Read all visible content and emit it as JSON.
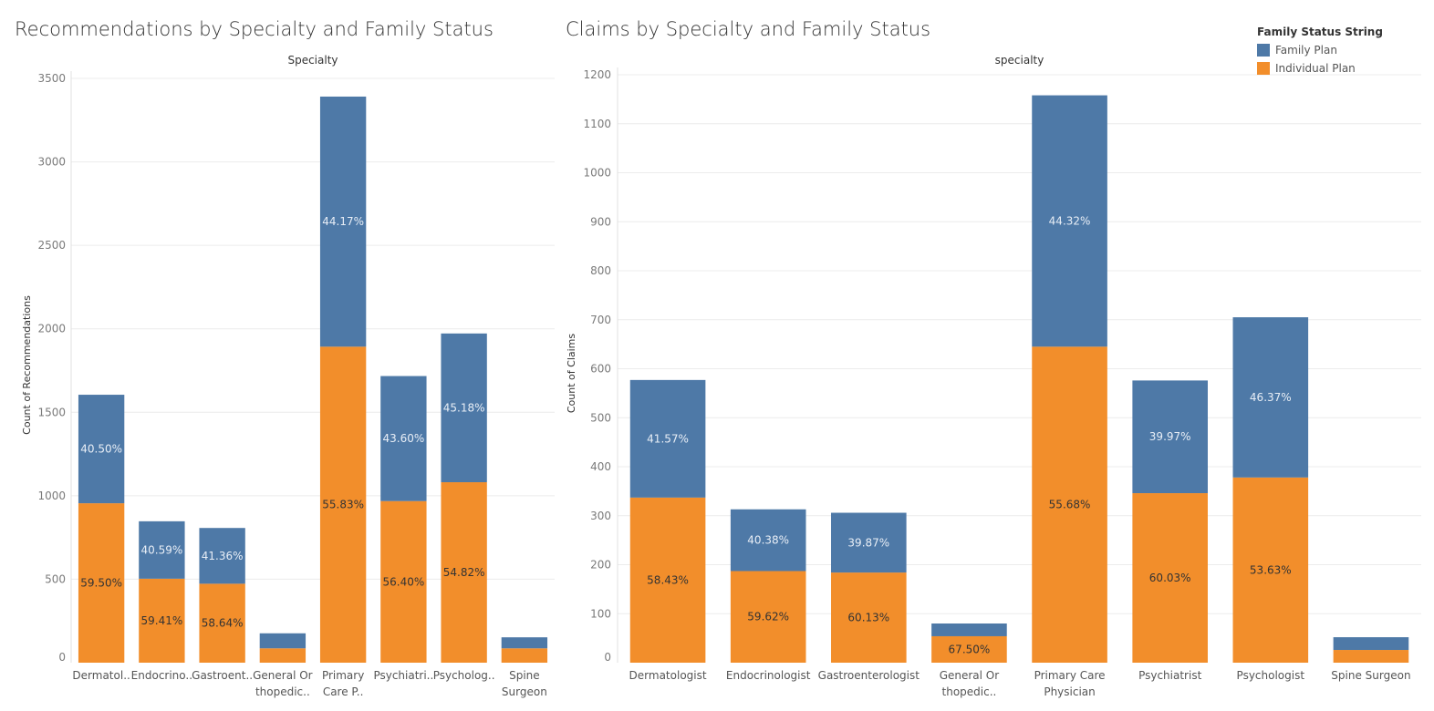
{
  "colors": {
    "family": "#4e79a7",
    "individual": "#f28e2b",
    "grid": "#ececec",
    "axis_text": "#7a7a7a",
    "label_dark": "#333333",
    "label_light": "#e8eef6"
  },
  "legend": {
    "title": "Family Status String",
    "items": [
      {
        "label": "Family Plan",
        "color": "#4e79a7"
      },
      {
        "label": "Individual Plan",
        "color": "#f28e2b"
      }
    ]
  },
  "chart_data": [
    {
      "type": "bar",
      "stacked": true,
      "title": "Recommendations by Specialty and Family Status",
      "column_header": "Specialty",
      "ylabel": "Count of Recommendations",
      "ylim": [
        0,
        3500
      ],
      "yticks": [
        0,
        500,
        1000,
        1500,
        2000,
        2500,
        3000,
        3500
      ],
      "categories": [
        "Dermatol..",
        "Endocrino..",
        "Gastroent..",
        "General Or thopedic..",
        "Primary Care P..",
        "Psychiatri..",
        "Psycholog..",
        "Spine Surgeon"
      ],
      "category_lines": [
        [
          "Dermatol.."
        ],
        [
          "Endocrino.."
        ],
        [
          "Gastroent.."
        ],
        [
          "General Or",
          "thopedic.."
        ],
        [
          "Primary",
          "Care P.."
        ],
        [
          "Psychiatri.."
        ],
        [
          "Psycholog.."
        ],
        [
          "Spine",
          "Surgeon"
        ]
      ],
      "series": [
        {
          "name": "Individual Plan",
          "values": [
            955,
            503,
            473,
            86,
            1893,
            968,
            1081,
            86
          ],
          "labels": [
            "59.50%",
            "59.41%",
            "58.64%",
            "",
            "55.83%",
            "56.40%",
            "54.82%",
            ""
          ]
        },
        {
          "name": "Family Plan",
          "values": [
            650,
            344,
            334,
            90,
            1498,
            749,
            891,
            66
          ],
          "labels": [
            "40.50%",
            "40.59%",
            "41.36%",
            "",
            "44.17%",
            "43.60%",
            "45.18%",
            ""
          ]
        }
      ]
    },
    {
      "type": "bar",
      "stacked": true,
      "title": "Claims by Specialty and Family Status",
      "column_header": "specialty",
      "ylabel": "Count of Claims",
      "ylim": [
        0,
        1200
      ],
      "yticks": [
        0,
        100,
        200,
        300,
        400,
        500,
        600,
        700,
        800,
        900,
        1000,
        1100,
        1200
      ],
      "categories": [
        "Dermatologist",
        "Endocrinologist",
        "Gastroenterologist",
        "General Or thopedic..",
        "Primary Care Physician",
        "Psychiatrist",
        "Psychologist",
        "Spine Surgeon"
      ],
      "category_lines": [
        [
          "Dermatologist"
        ],
        [
          "Endocrinologist"
        ],
        [
          "Gastroenterologist"
        ],
        [
          "General Or",
          "thopedic.."
        ],
        [
          "Primary Care",
          "Physician"
        ],
        [
          "Psychiatrist"
        ],
        [
          "Psychologist"
        ],
        [
          "Spine Surgeon"
        ]
      ],
      "series": [
        {
          "name": "Individual Plan",
          "values": [
            337,
            187,
            184,
            54,
            645,
            346,
            378,
            26
          ],
          "labels": [
            "58.43%",
            "59.62%",
            "60.13%",
            "67.50%",
            "55.68%",
            "60.03%",
            "53.63%",
            ""
          ]
        },
        {
          "name": "Family Plan",
          "values": [
            240,
            126,
            122,
            26,
            513,
            230,
            327,
            26
          ],
          "labels": [
            "41.57%",
            "40.38%",
            "39.87%",
            "",
            "44.32%",
            "39.97%",
            "46.37%",
            ""
          ]
        }
      ]
    }
  ]
}
